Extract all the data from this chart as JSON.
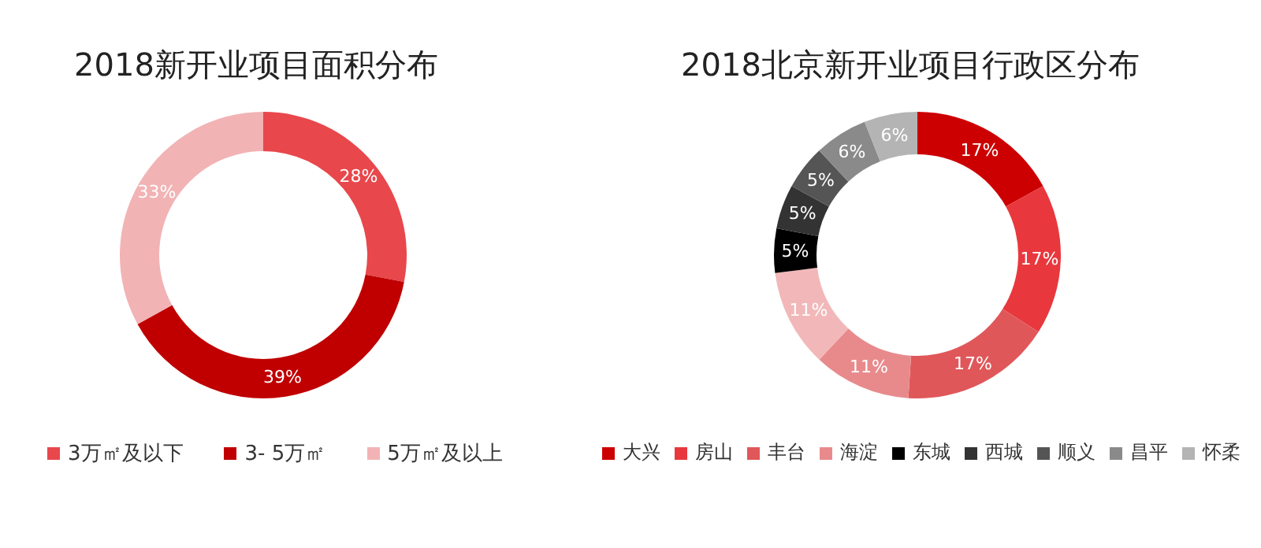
{
  "chart_data": [
    {
      "type": "donut",
      "title": "2018新开业项目面积分布",
      "categories": [
        "3万㎡及以下",
        "3- 5万㎡",
        "5万㎡及以上"
      ],
      "values": [
        28,
        39,
        33
      ],
      "value_labels": [
        "28%",
        "39%",
        "33%"
      ],
      "colors": [
        "#e8474c",
        "#c00000",
        "#f2b3b5"
      ],
      "legend": "bottom"
    },
    {
      "type": "donut",
      "title": "2018北京新开业项目行政区分布",
      "categories": [
        "大兴",
        "房山",
        "丰台",
        "海淀",
        null,
        "东城",
        "西城",
        "顺义",
        "昌平",
        "怀柔"
      ],
      "values": [
        17,
        17,
        17,
        11,
        11,
        5,
        5,
        5,
        6,
        6
      ],
      "value_labels": [
        "17%",
        "17%",
        "17%",
        "11%",
        "11%",
        "5%",
        "5%",
        "5%",
        "6%",
        "6%"
      ],
      "colors": [
        "#cc0000",
        "#e8383d",
        "#e0575a",
        "#e88a8c",
        "#f2b8b9",
        "#000000",
        "#333333",
        "#555555",
        "#8a8a8a",
        "#b4b4b4"
      ],
      "legend": "bottom"
    }
  ]
}
